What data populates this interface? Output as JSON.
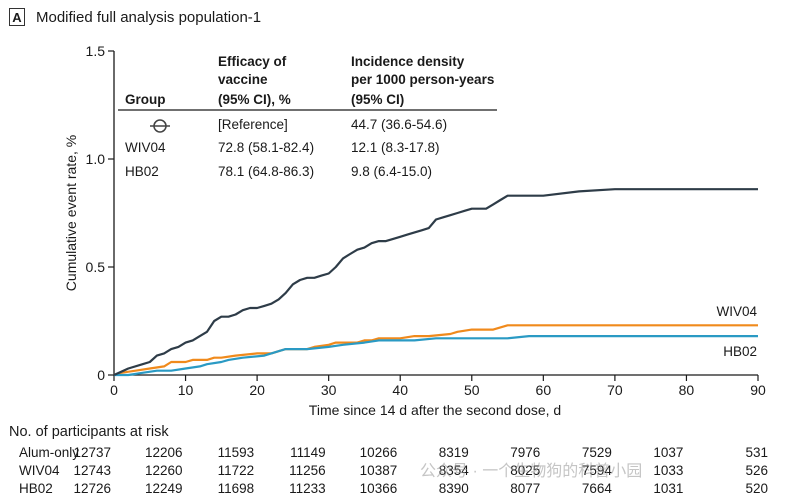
{
  "panel": {
    "tag": "A",
    "title": "Modified full analysis population-1"
  },
  "chart_data": {
    "type": "line",
    "xlabel": "Time since 14 d after the second dose, d",
    "ylabel": "Cumulative event rate, %",
    "xlim": [
      0,
      90
    ],
    "ylim": [
      0,
      1.5
    ],
    "xticks": [
      0,
      10,
      20,
      30,
      40,
      50,
      60,
      70,
      80,
      90
    ],
    "yticks": [
      0,
      0.5,
      1.0,
      1.5
    ],
    "ytick_labels": [
      "0",
      "0.5",
      "1.0",
      "1.5"
    ],
    "series": [
      {
        "name": "Alum-only",
        "color": "#2e3c48",
        "x": [
          0,
          2,
          4,
          5,
          6,
          7,
          8,
          9,
          10,
          11,
          12,
          13,
          14,
          15,
          16,
          17,
          18,
          19,
          20,
          21,
          22,
          23,
          24,
          25,
          26,
          27,
          28,
          29,
          30,
          31,
          32,
          33,
          34,
          35,
          36,
          37,
          38,
          39,
          40,
          41,
          42,
          43,
          44,
          45,
          46,
          47,
          48,
          49,
          50,
          52,
          53,
          54,
          55,
          60,
          65,
          70,
          75,
          80,
          85,
          90
        ],
        "y": [
          0,
          0.03,
          0.05,
          0.06,
          0.09,
          0.1,
          0.12,
          0.13,
          0.15,
          0.16,
          0.18,
          0.2,
          0.25,
          0.27,
          0.27,
          0.28,
          0.3,
          0.31,
          0.31,
          0.32,
          0.33,
          0.35,
          0.38,
          0.42,
          0.44,
          0.45,
          0.45,
          0.46,
          0.47,
          0.5,
          0.54,
          0.56,
          0.58,
          0.59,
          0.61,
          0.62,
          0.62,
          0.63,
          0.64,
          0.65,
          0.66,
          0.67,
          0.68,
          0.72,
          0.73,
          0.74,
          0.75,
          0.76,
          0.77,
          0.77,
          0.79,
          0.81,
          0.83,
          0.83,
          0.85,
          0.86,
          0.86,
          0.86,
          0.86,
          0.86
        ]
      },
      {
        "name": "WIV04",
        "color": "#f08a1c",
        "end_label": "WIV04",
        "x": [
          0,
          1,
          3,
          5,
          7,
          8,
          10,
          11,
          13,
          14,
          15,
          17,
          20,
          22,
          23,
          24,
          27,
          28,
          30,
          31,
          34,
          35,
          36,
          37,
          38,
          40,
          42,
          44,
          47,
          48,
          50,
          53,
          55,
          60,
          65,
          70,
          75,
          80,
          85,
          90
        ],
        "y": [
          0,
          0.01,
          0.02,
          0.03,
          0.04,
          0.06,
          0.06,
          0.07,
          0.07,
          0.08,
          0.08,
          0.09,
          0.1,
          0.1,
          0.11,
          0.12,
          0.12,
          0.13,
          0.14,
          0.15,
          0.15,
          0.16,
          0.16,
          0.17,
          0.17,
          0.17,
          0.18,
          0.18,
          0.19,
          0.2,
          0.21,
          0.21,
          0.23,
          0.23,
          0.23,
          0.23,
          0.23,
          0.23,
          0.23,
          0.23
        ]
      },
      {
        "name": "HB02",
        "color": "#2a9ac4",
        "end_label": "HB02",
        "x": [
          0,
          2,
          4,
          6,
          8,
          10,
          12,
          13,
          15,
          16,
          18,
          21,
          23,
          24,
          27,
          30,
          32,
          35,
          37,
          40,
          42,
          45,
          50,
          55,
          58,
          60,
          65,
          70,
          75,
          80,
          85,
          90
        ],
        "y": [
          0,
          0.0,
          0.01,
          0.02,
          0.02,
          0.03,
          0.04,
          0.05,
          0.06,
          0.07,
          0.08,
          0.09,
          0.11,
          0.12,
          0.12,
          0.13,
          0.14,
          0.15,
          0.16,
          0.16,
          0.16,
          0.17,
          0.17,
          0.17,
          0.18,
          0.18,
          0.18,
          0.18,
          0.18,
          0.18,
          0.18,
          0.18
        ]
      }
    ],
    "inset_table": {
      "headers": [
        [
          "",
          "Efficacy of",
          "Incidence density"
        ],
        [
          "",
          "vaccine",
          "per 1000 person-years"
        ],
        [
          "Group",
          "(95% CI), %",
          "(95% CI)"
        ]
      ],
      "rows": [
        {
          "group": "",
          "efficacy": "[Reference]",
          "incidence": "44.7 (36.6-54.6)"
        },
        {
          "group": "WIV04",
          "efficacy": "72.8 (58.1-82.4)",
          "incidence": "12.1 (8.3-17.8)"
        },
        {
          "group": "HB02",
          "efficacy": "78.1 (64.8-86.3)",
          "incidence": "9.8 (6.4-15.0)"
        }
      ]
    }
  },
  "risk_table": {
    "title": "No. of participants at risk",
    "rows": [
      {
        "label": "Alum-only",
        "values": [
          "12737",
          "12206",
          "11593",
          "11149",
          "10266",
          "8319",
          "7976",
          "7529",
          "1037",
          "531"
        ]
      },
      {
        "label": "WIV04",
        "values": [
          "12743",
          "12260",
          "11722",
          "11256",
          "10387",
          "8354",
          "8025",
          "7594",
          "1033",
          "526"
        ]
      },
      {
        "label": "HB02",
        "values": [
          "12726",
          "12249",
          "11698",
          "11233",
          "10366",
          "8390",
          "8077",
          "7664",
          "1031",
          "520"
        ]
      }
    ]
  },
  "watermark": "公众号 · 一个生物狗的科普小园"
}
